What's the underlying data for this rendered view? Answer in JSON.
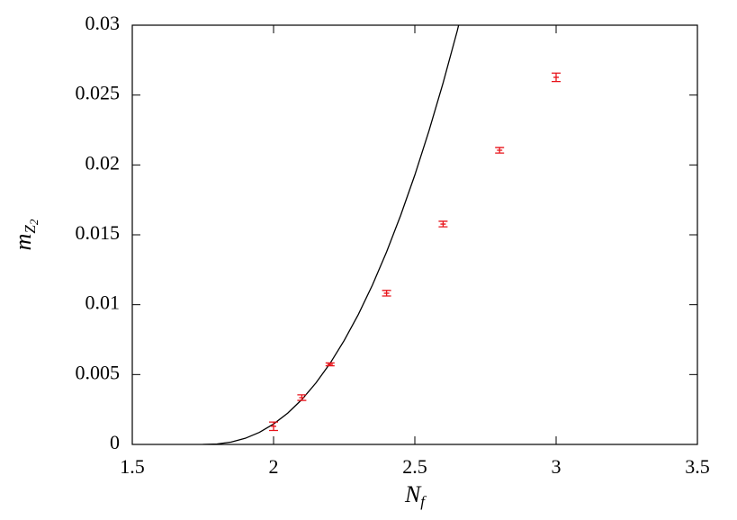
{
  "chart_data": {
    "type": "scatter",
    "xlabel": {
      "main": "N",
      "sub": "f"
    },
    "ylabel": {
      "main": "m",
      "sub": "Z",
      "subsub": "2"
    },
    "xlim": [
      1.5,
      3.5
    ],
    "xticks": [
      1.5,
      2,
      2.5,
      3,
      3.5
    ],
    "ylim": [
      0,
      0.03
    ],
    "yticks": [
      0,
      0.005,
      0.01,
      0.015,
      0.02,
      0.025,
      0.03
    ],
    "series": [
      {
        "kind": "line",
        "color": "#000000",
        "x": [
          1.75,
          1.8,
          1.85,
          1.9,
          1.95,
          2.0,
          2.05,
          2.1,
          2.15,
          2.2,
          2.25,
          2.3,
          2.35,
          2.4,
          2.45,
          2.5,
          2.55,
          2.6,
          2.65,
          2.655
        ],
        "values": [
          0,
          3.32e-05,
          0.000169,
          0.000439,
          0.000863,
          0.00146,
          0.00224,
          0.00321,
          0.0044,
          0.0058,
          0.00744,
          0.0093,
          0.01141,
          0.01378,
          0.0164,
          0.01928,
          0.02244,
          0.02587,
          0.02959,
          0.03
        ]
      },
      {
        "kind": "errorbar",
        "color": "#e8141b",
        "x": [
          2.0,
          2.1,
          2.2,
          2.4,
          2.6,
          2.8,
          3.0
        ],
        "values": [
          0.0013,
          0.00335,
          0.00573,
          0.01082,
          0.01577,
          0.02105,
          0.02627
        ],
        "errors": [
          0.0003,
          0.0002,
          0.0001,
          0.0002,
          0.0002,
          0.0002,
          0.0003
        ]
      }
    ]
  }
}
